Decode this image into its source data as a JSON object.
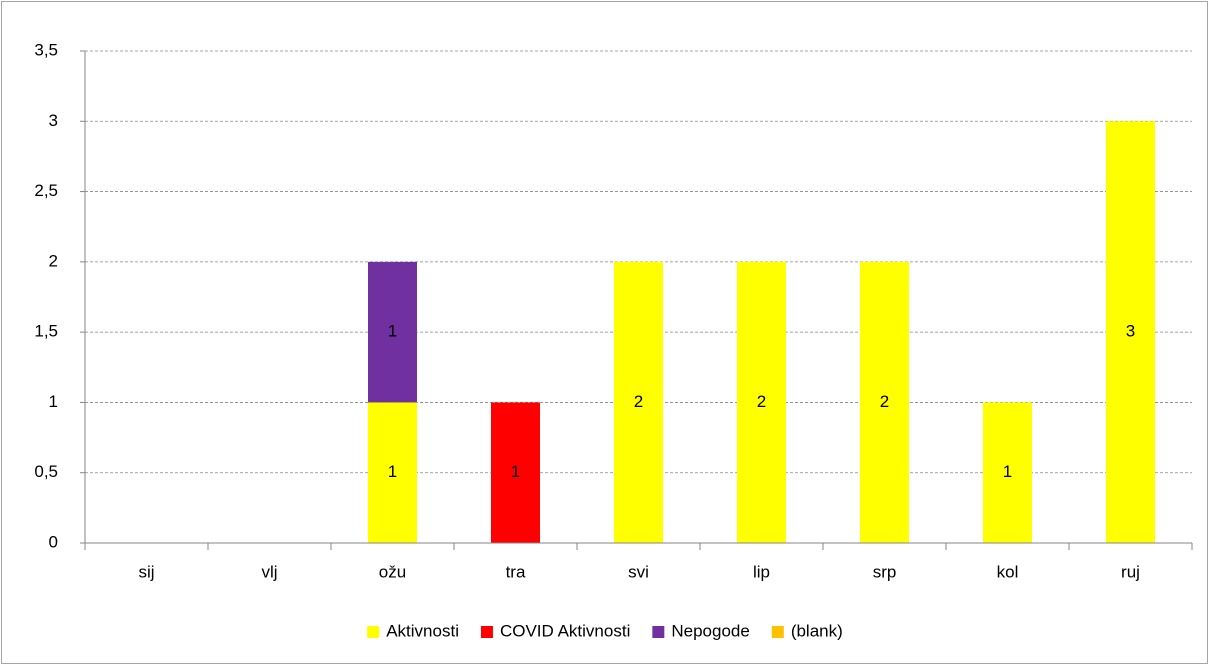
{
  "chart_data": {
    "type": "stacked-bar",
    "categories": [
      "sij",
      "vlj",
      "ožu",
      "tra",
      "svi",
      "lip",
      "srp",
      "kol",
      "ruj"
    ],
    "series": [
      {
        "name": "Aktivnosti",
        "color": "#ffff00",
        "values": [
          null,
          null,
          1,
          null,
          2,
          2,
          2,
          1,
          3
        ]
      },
      {
        "name": "COVID Aktivnosti",
        "color": "#ff0000",
        "values": [
          null,
          null,
          null,
          1,
          null,
          null,
          null,
          null,
          null
        ]
      },
      {
        "name": "Nepogode",
        "color": "#7030a0",
        "values": [
          null,
          null,
          1,
          null,
          null,
          null,
          null,
          null,
          null
        ]
      },
      {
        "name": "(blank)",
        "color": "#ffc000",
        "values": [
          null,
          null,
          null,
          null,
          null,
          null,
          null,
          null,
          null
        ]
      }
    ],
    "ylim": [
      0,
      3.5
    ],
    "yticks": [
      0,
      {
        "value": 0.5,
        "label": "0,5"
      },
      1,
      {
        "value": 1.5,
        "label": "1,5"
      },
      2,
      {
        "value": 2.5,
        "label": "2,5"
      },
      3,
      {
        "value": 3.5,
        "label": "3,5"
      }
    ],
    "grid": true,
    "legend": "bottom",
    "data_labels": true
  }
}
